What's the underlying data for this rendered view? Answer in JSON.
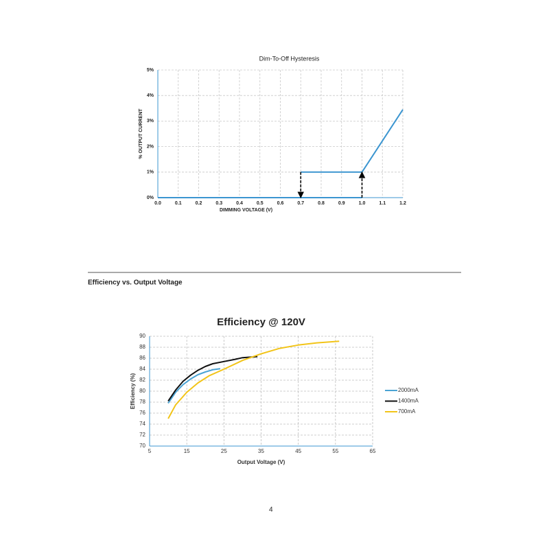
{
  "section_title": "Efficiency vs. Output Voltage",
  "page_number": "4",
  "chart_data": [
    {
      "type": "line",
      "title": "Dim-To-Off Hysteresis",
      "x_label": "DIMMING VOLTAGE (V)",
      "y_label": "% OUTPUT CURRENT",
      "xlim": [
        0,
        1.2
      ],
      "ylim": [
        0,
        5
      ],
      "grid": true,
      "xticks": [
        {
          "value": 0,
          "label": "0.0"
        },
        0.1,
        0.2,
        0.3,
        0.4,
        0.5,
        0.6,
        0.7,
        0.8,
        0.9,
        {
          "value": 1,
          "label": "1.0"
        },
        1.1,
        1.2
      ],
      "yticks": [
        {
          "value": 0,
          "label": "0%"
        },
        {
          "value": 1,
          "label": "1%"
        },
        {
          "value": 2,
          "label": "2%"
        },
        {
          "value": 3,
          "label": "3%"
        },
        {
          "value": 4,
          "label": "4%"
        },
        {
          "value": 5,
          "label": "5%"
        }
      ],
      "series": [
        {
          "color": "#3b95d0",
          "x": [
            0,
            1.0
          ],
          "values": [
            0,
            0
          ]
        },
        {
          "color": "#3b95d0",
          "x": [
            0.7,
            1.0,
            1.2
          ],
          "values": [
            1,
            1,
            3.45
          ]
        },
        {
          "color": "#000000",
          "dashed": true,
          "arrow": true,
          "x": [
            0.7,
            0.7
          ],
          "values": [
            1,
            0
          ]
        },
        {
          "color": "#000000",
          "dashed": true,
          "arrow": true,
          "x": [
            1.0,
            1.0
          ],
          "values": [
            0,
            1
          ]
        }
      ]
    },
    {
      "type": "line",
      "title": "Efficiency @ 120V",
      "x_label": "Output Voltage (V)",
      "y_label": "Efficiency (%)",
      "xlim": [
        5,
        65
      ],
      "ylim": [
        70,
        90
      ],
      "grid": true,
      "legend": "right",
      "xticks": [
        5,
        15,
        25,
        35,
        45,
        55,
        65
      ],
      "yticks": [
        70,
        72,
        74,
        76,
        78,
        80,
        82,
        84,
        86,
        88,
        90
      ],
      "series": [
        {
          "name": "2000mA",
          "color": "#4aa3d4",
          "x": [
            10,
            12,
            14,
            16,
            18,
            20,
            22,
            24
          ],
          "values": [
            77.8,
            79.8,
            81.2,
            82.2,
            83,
            83.5,
            83.9,
            84.1
          ]
        },
        {
          "name": "1400mA",
          "color": "#111111",
          "x": [
            10,
            12,
            14,
            16,
            18,
            20,
            22,
            25,
            28,
            30,
            34
          ],
          "values": [
            78.2,
            80.2,
            81.8,
            82.9,
            83.8,
            84.5,
            85,
            85.4,
            85.8,
            86.1,
            86.3
          ]
        },
        {
          "name": "700mA",
          "color": "#f2c418",
          "x": [
            10,
            12,
            15,
            18,
            21,
            25,
            30,
            35,
            40,
            45,
            50,
            56
          ],
          "values": [
            75,
            77.5,
            79.8,
            81.5,
            82.8,
            84,
            85.6,
            86.8,
            87.8,
            88.4,
            88.8,
            89.1
          ]
        }
      ]
    }
  ]
}
